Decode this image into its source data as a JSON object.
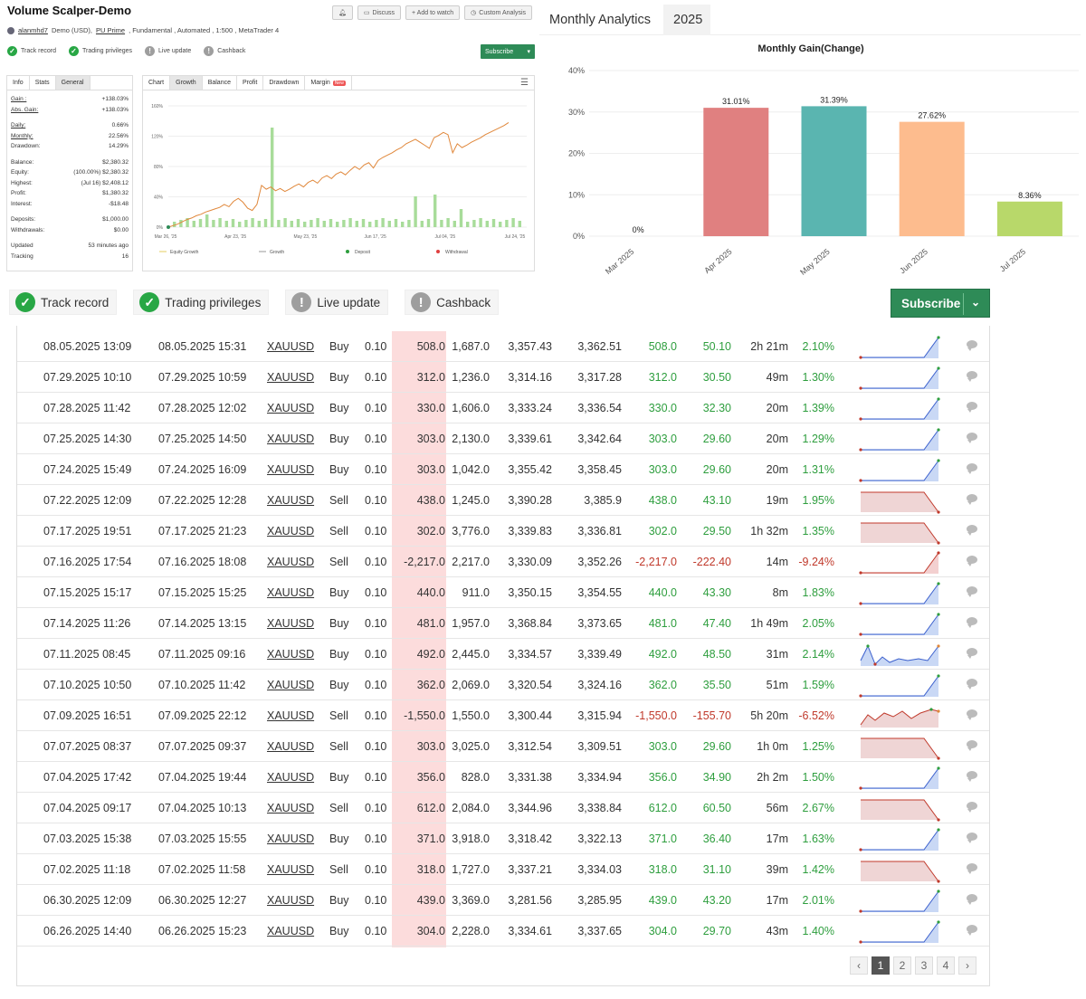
{
  "header": {
    "title": "Volume Scalper-Demo",
    "user": "alanmhd7",
    "account_pre": "Demo (USD),",
    "broker": "PU Prime",
    "account_post": ", Fundamental , Automated , 1:500 , MetaTrader 4",
    "buttons": {
      "discuss": "Discuss",
      "add_watch": "+ Add to watch",
      "custom": "Custom Analysis"
    }
  },
  "badges": {
    "track": "Track record",
    "privileges": "Trading privileges",
    "live": "Live update",
    "cashback": "Cashback",
    "subscribe": "Subscribe"
  },
  "info": {
    "tabs": [
      "Info",
      "Stats",
      "General"
    ],
    "rows": [
      {
        "k": "Gain :",
        "v": "+138.03%",
        "cls": "g"
      },
      {
        "k": "Abs. Gain:",
        "v": "+138.03%",
        "cls": "g"
      },
      {
        "k": "",
        "v": "",
        "cls": ""
      },
      {
        "k": "Daily:",
        "v": "0.66%",
        "cls": ""
      },
      {
        "k": "Monthly:",
        "v": "22.56%",
        "cls": ""
      },
      {
        "k": "Drawdown:",
        "v": "14.29%",
        "cls": ""
      },
      {
        "k": "",
        "v": "",
        "cls": ""
      },
      {
        "k": "Balance:",
        "v": "$2,380.32",
        "cls": ""
      },
      {
        "k": "Equity:",
        "v": "(100.00%) $2,380.32",
        "cls": ""
      },
      {
        "k": "Highest:",
        "v": "(Jul 16) $2,408.12",
        "cls": ""
      },
      {
        "k": "Profit:",
        "v": "$1,380.32",
        "cls": "g"
      },
      {
        "k": "Interest:",
        "v": "-$18.48",
        "cls": ""
      },
      {
        "k": "",
        "v": "",
        "cls": ""
      },
      {
        "k": "Deposits:",
        "v": "$1,000.00",
        "cls": ""
      },
      {
        "k": "Withdrawals:",
        "v": "$0.00",
        "cls": ""
      },
      {
        "k": "",
        "v": "",
        "cls": ""
      },
      {
        "k": "Updated",
        "v": "53 minutes ago",
        "cls": ""
      },
      {
        "k": "Tracking",
        "v": "16",
        "cls": ""
      }
    ]
  },
  "growth": {
    "tabs": [
      "Chart",
      "Growth",
      "Balance",
      "Profit",
      "Drawdown",
      "Margin"
    ],
    "new_badge": "New",
    "y_ticks": [
      "160%",
      "120%",
      "80%",
      "40%",
      "0%"
    ],
    "x_ticks": [
      "Mar 26, '25",
      "Apr 23, '25",
      "May 23, '25",
      "Jun 17, '25",
      "Jul 04, '25",
      "Jul 24, '25"
    ],
    "legend": [
      "Equity Growth",
      "Growth",
      "Deposit",
      "Withdrawal"
    ],
    "growth_values": [
      0,
      2,
      4,
      7,
      10,
      12,
      15,
      17,
      20,
      22,
      24,
      26,
      30,
      27,
      34,
      38,
      33,
      25,
      22,
      30,
      55,
      50,
      53,
      48,
      51,
      47,
      50,
      54,
      57,
      53,
      59,
      62,
      58,
      65,
      68,
      64,
      70,
      73,
      69,
      75,
      80,
      76,
      82,
      85,
      78,
      88,
      92,
      95,
      98,
      102,
      105,
      110,
      113,
      116,
      112,
      108,
      104,
      118,
      121,
      125,
      122,
      98,
      110,
      105,
      108,
      112,
      115,
      118,
      122,
      125,
      128,
      131,
      134,
      138
    ]
  },
  "analytics": {
    "tab_title": "Monthly Analytics",
    "tab_year": "2025",
    "chart_data": {
      "type": "bar",
      "title": "Monthly Gain(Change)",
      "categories": [
        "Mar 2025",
        "Apr 2025",
        "May 2025",
        "Jun 2025",
        "Jul 2025"
      ],
      "values": [
        0,
        31.01,
        31.39,
        27.62,
        8.36
      ],
      "labels": [
        "0%",
        "31.01%",
        "31.39%",
        "27.62%",
        "8.36%"
      ],
      "colors": [
        "#e8e8e8",
        "#e08080",
        "#5ab5b0",
        "#fdbc8e",
        "#b8d86a"
      ],
      "y_ticks": [
        "0%",
        "10%",
        "20%",
        "30%",
        "40%"
      ],
      "ylim": [
        0,
        40
      ]
    }
  },
  "table": {
    "rows": [
      {
        "open": "08.05.2025 13:09",
        "close": "08.05.2025 15:31",
        "sym": "XAUUSD",
        "act": "Buy",
        "lots": "0.10",
        "sl": "508.0",
        "tp": "1,687.0",
        "op": "3,357.43",
        "cp": "3,362.51",
        "pips": "508.0",
        "profit": "50.10",
        "dur": "2h 21m",
        "gain": "2.10%",
        "spark": "buy"
      },
      {
        "open": "07.29.2025 10:10",
        "close": "07.29.2025 10:59",
        "sym": "XAUUSD",
        "act": "Buy",
        "lots": "0.10",
        "sl": "312.0",
        "tp": "1,236.0",
        "op": "3,314.16",
        "cp": "3,317.28",
        "pips": "312.0",
        "profit": "30.50",
        "dur": "49m",
        "gain": "1.30%",
        "spark": "buy"
      },
      {
        "open": "07.28.2025 11:42",
        "close": "07.28.2025 12:02",
        "sym": "XAUUSD",
        "act": "Buy",
        "lots": "0.10",
        "sl": "330.0",
        "tp": "1,606.0",
        "op": "3,333.24",
        "cp": "3,336.54",
        "pips": "330.0",
        "profit": "32.30",
        "dur": "20m",
        "gain": "1.39%",
        "spark": "buy"
      },
      {
        "open": "07.25.2025 14:30",
        "close": "07.25.2025 14:50",
        "sym": "XAUUSD",
        "act": "Buy",
        "lots": "0.10",
        "sl": "303.0",
        "tp": "2,130.0",
        "op": "3,339.61",
        "cp": "3,342.64",
        "pips": "303.0",
        "profit": "29.60",
        "dur": "20m",
        "gain": "1.29%",
        "spark": "buy"
      },
      {
        "open": "07.24.2025 15:49",
        "close": "07.24.2025 16:09",
        "sym": "XAUUSD",
        "act": "Buy",
        "lots": "0.10",
        "sl": "303.0",
        "tp": "1,042.0",
        "op": "3,355.42",
        "cp": "3,358.45",
        "pips": "303.0",
        "profit": "29.60",
        "dur": "20m",
        "gain": "1.31%",
        "spark": "buy"
      },
      {
        "open": "07.22.2025 12:09",
        "close": "07.22.2025 12:28",
        "sym": "XAUUSD",
        "act": "Sell",
        "lots": "0.10",
        "sl": "438.0",
        "tp": "1,245.0",
        "op": "3,390.28",
        "cp": "3,385.9",
        "pips": "438.0",
        "profit": "43.10",
        "dur": "19m",
        "gain": "1.95%",
        "spark": "sell"
      },
      {
        "open": "07.17.2025 19:51",
        "close": "07.17.2025 21:23",
        "sym": "XAUUSD",
        "act": "Sell",
        "lots": "0.10",
        "sl": "302.0",
        "tp": "3,776.0",
        "op": "3,339.83",
        "cp": "3,336.81",
        "pips": "302.0",
        "profit": "29.50",
        "dur": "1h 32m",
        "gain": "1.35%",
        "spark": "sell"
      },
      {
        "open": "07.16.2025 17:54",
        "close": "07.16.2025 18:08",
        "sym": "XAUUSD",
        "act": "Sell",
        "lots": "0.10",
        "sl": "-2,217.0",
        "tp": "2,217.0",
        "op": "3,330.09",
        "cp": "3,352.26",
        "pips": "-2,217.0",
        "profit": "-222.40",
        "dur": "14m",
        "gain": "-9.24%",
        "spark": "loss"
      },
      {
        "open": "07.15.2025 15:17",
        "close": "07.15.2025 15:25",
        "sym": "XAUUSD",
        "act": "Buy",
        "lots": "0.10",
        "sl": "440.0",
        "tp": "911.0",
        "op": "3,350.15",
        "cp": "3,354.55",
        "pips": "440.0",
        "profit": "43.30",
        "dur": "8m",
        "gain": "1.83%",
        "spark": "buy"
      },
      {
        "open": "07.14.2025 11:26",
        "close": "07.14.2025 13:15",
        "sym": "XAUUSD",
        "act": "Buy",
        "lots": "0.10",
        "sl": "481.0",
        "tp": "1,957.0",
        "op": "3,368.84",
        "cp": "3,373.65",
        "pips": "481.0",
        "profit": "47.40",
        "dur": "1h 49m",
        "gain": "2.05%",
        "spark": "buy"
      },
      {
        "open": "07.11.2025 08:45",
        "close": "07.11.2025 09:16",
        "sym": "XAUUSD",
        "act": "Buy",
        "lots": "0.10",
        "sl": "492.0",
        "tp": "2,445.0",
        "op": "3,334.57",
        "cp": "3,339.49",
        "pips": "492.0",
        "profit": "48.50",
        "dur": "31m",
        "gain": "2.14%",
        "spark": "wave"
      },
      {
        "open": "07.10.2025 10:50",
        "close": "07.10.2025 11:42",
        "sym": "XAUUSD",
        "act": "Buy",
        "lots": "0.10",
        "sl": "362.0",
        "tp": "2,069.0",
        "op": "3,320.54",
        "cp": "3,324.16",
        "pips": "362.0",
        "profit": "35.50",
        "dur": "51m",
        "gain": "1.59%",
        "spark": "buy"
      },
      {
        "open": "07.09.2025 16:51",
        "close": "07.09.2025 22:12",
        "sym": "XAUUSD",
        "act": "Sell",
        "lots": "0.10",
        "sl": "-1,550.0",
        "tp": "1,550.0",
        "op": "3,300.44",
        "cp": "3,315.94",
        "pips": "-1,550.0",
        "profit": "-155.70",
        "dur": "5h 20m",
        "gain": "-6.52%",
        "spark": "wavesell"
      },
      {
        "open": "07.07.2025 08:37",
        "close": "07.07.2025 09:37",
        "sym": "XAUUSD",
        "act": "Sell",
        "lots": "0.10",
        "sl": "303.0",
        "tp": "3,025.0",
        "op": "3,312.54",
        "cp": "3,309.51",
        "pips": "303.0",
        "profit": "29.60",
        "dur": "1h 0m",
        "gain": "1.25%",
        "spark": "sell"
      },
      {
        "open": "07.04.2025 17:42",
        "close": "07.04.2025 19:44",
        "sym": "XAUUSD",
        "act": "Buy",
        "lots": "0.10",
        "sl": "356.0",
        "tp": "828.0",
        "op": "3,331.38",
        "cp": "3,334.94",
        "pips": "356.0",
        "profit": "34.90",
        "dur": "2h 2m",
        "gain": "1.50%",
        "spark": "buy"
      },
      {
        "open": "07.04.2025 09:17",
        "close": "07.04.2025 10:13",
        "sym": "XAUUSD",
        "act": "Sell",
        "lots": "0.10",
        "sl": "612.0",
        "tp": "2,084.0",
        "op": "3,344.96",
        "cp": "3,338.84",
        "pips": "612.0",
        "profit": "60.50",
        "dur": "56m",
        "gain": "2.67%",
        "spark": "sell"
      },
      {
        "open": "07.03.2025 15:38",
        "close": "07.03.2025 15:55",
        "sym": "XAUUSD",
        "act": "Buy",
        "lots": "0.10",
        "sl": "371.0",
        "tp": "3,918.0",
        "op": "3,318.42",
        "cp": "3,322.13",
        "pips": "371.0",
        "profit": "36.40",
        "dur": "17m",
        "gain": "1.63%",
        "spark": "buy"
      },
      {
        "open": "07.02.2025 11:18",
        "close": "07.02.2025 11:58",
        "sym": "XAUUSD",
        "act": "Sell",
        "lots": "0.10",
        "sl": "318.0",
        "tp": "1,727.0",
        "op": "3,337.21",
        "cp": "3,334.03",
        "pips": "318.0",
        "profit": "31.10",
        "dur": "39m",
        "gain": "1.42%",
        "spark": "sell"
      },
      {
        "open": "06.30.2025 12:09",
        "close": "06.30.2025 12:27",
        "sym": "XAUUSD",
        "act": "Buy",
        "lots": "0.10",
        "sl": "439.0",
        "tp": "3,369.0",
        "op": "3,281.56",
        "cp": "3,285.95",
        "pips": "439.0",
        "profit": "43.20",
        "dur": "17m",
        "gain": "2.01%",
        "spark": "buy"
      },
      {
        "open": "06.26.2025 14:40",
        "close": "06.26.2025 15:23",
        "sym": "XAUUSD",
        "act": "Buy",
        "lots": "0.10",
        "sl": "304.0",
        "tp": "2,228.0",
        "op": "3,334.61",
        "cp": "3,337.65",
        "pips": "304.0",
        "profit": "29.70",
        "dur": "43m",
        "gain": "1.40%",
        "spark": "buy"
      }
    ],
    "pages": [
      "1",
      "2",
      "3",
      "4"
    ],
    "current_page": "1",
    "prev": "‹",
    "next": "›"
  }
}
